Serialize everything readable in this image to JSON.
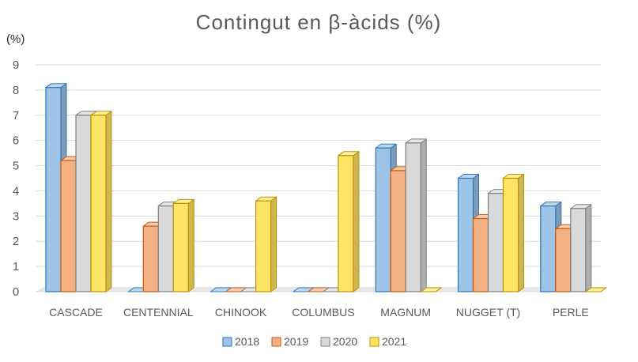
{
  "chart_data": {
    "type": "bar",
    "title": "Contingut en β-àcids (%)",
    "ylabel": "(%)",
    "xlabel": "",
    "ylim": [
      0,
      9
    ],
    "yticks": [
      0,
      1,
      2,
      3,
      4,
      5,
      6,
      7,
      8,
      9
    ],
    "grid": true,
    "legend_position": "bottom",
    "categories": [
      "CASCADE",
      "CENTENNIAL",
      "CHINOOK",
      "COLUMBUS",
      "MAGNUM",
      "NUGGET (T)",
      "PERLE"
    ],
    "series": [
      {
        "name": "2018",
        "values": [
          8.1,
          0,
          0,
          0,
          5.7,
          4.5,
          3.4
        ]
      },
      {
        "name": "2019",
        "values": [
          5.2,
          2.6,
          0,
          0,
          4.8,
          2.9,
          2.5
        ]
      },
      {
        "name": "2020",
        "values": [
          7.0,
          3.4,
          0,
          0,
          5.9,
          3.9,
          3.3
        ]
      },
      {
        "name": "2021",
        "values": [
          7.0,
          3.5,
          3.6,
          5.4,
          0,
          4.5,
          0
        ]
      }
    ]
  },
  "colors": {
    "2018": "#9dc3e6",
    "2019": "#f4b183",
    "2020": "#d9d9d9",
    "2021": "#ffe566"
  },
  "strokes": {
    "2018": "#2e75b6",
    "2019": "#c55a11",
    "2020": "#7f7f7f",
    "2021": "#bf9000"
  }
}
